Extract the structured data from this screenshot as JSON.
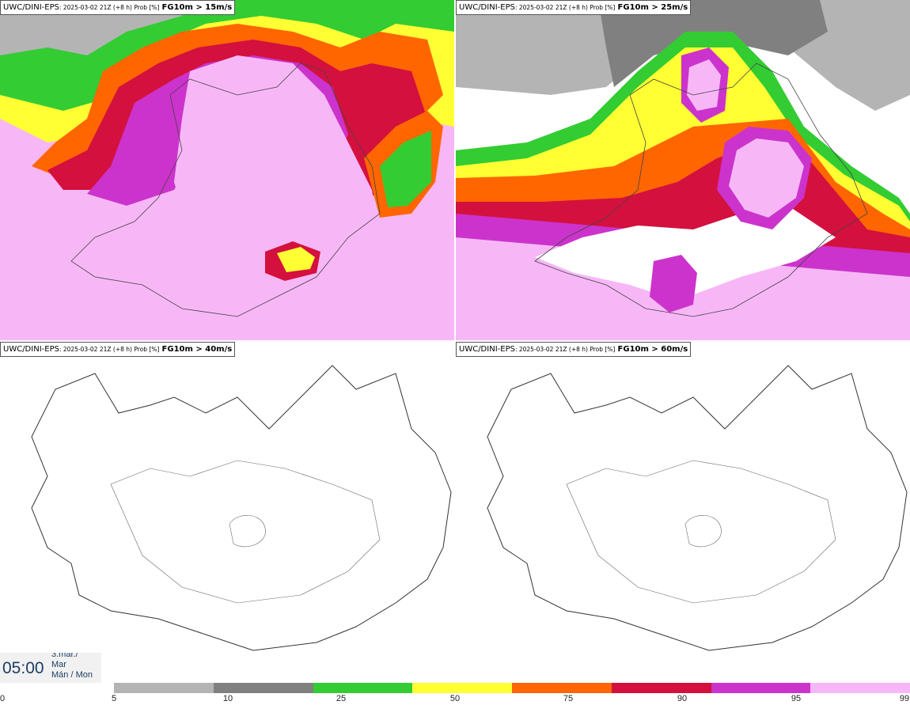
{
  "panels": [
    {
      "model": "UWC/DINI-EPS",
      "run": ": 2025-03-02 21Z (+8 h) Prob [%]",
      "param": "FG10m > 15m/s"
    },
    {
      "model": "UWC/DINI-EPS",
      "run": ": 2025-03-02 21Z (+8 h) Prob [%]",
      "param": "FG10m > 25m/s"
    },
    {
      "model": "UWC/DINI-EPS",
      "run": ": 2025-03-02 21Z (+8 h) Prob [%]",
      "param": "FG10m > 40m/s"
    },
    {
      "model": "UWC/DINI-EPS",
      "run": ": 2025-03-02 21Z (+8 h) Prob [%]",
      "param": "FG10m > 60m/s"
    }
  ],
  "timestamp": {
    "time": "05:00",
    "date_lines": [
      "3.mar./",
      "Mar",
      "Mán / Mon"
    ]
  },
  "colorbar": {
    "ticks": [
      "0",
      "5",
      "10",
      "25",
      "50",
      "75",
      "90",
      "95",
      "99"
    ],
    "colors": [
      "#b4b4b4",
      "#808080",
      "#33cc33",
      "#ffff33",
      "#ff6600",
      "#d4103e",
      "#cc33cc",
      "#f7b7f7"
    ]
  }
}
